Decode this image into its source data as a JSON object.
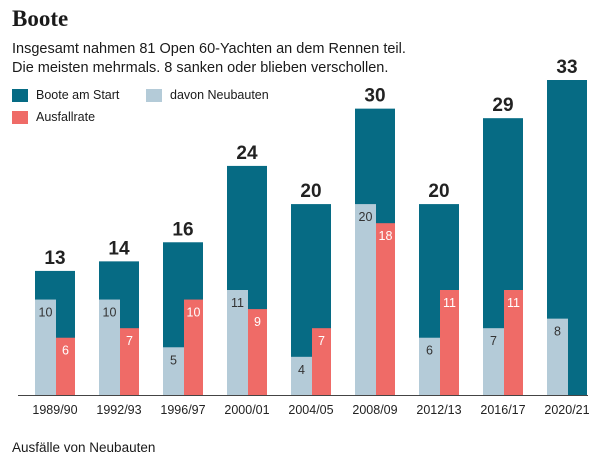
{
  "title": "Boote",
  "subtitle": {
    "line1": "Insgesamt nahmen 81 Open 60-Yachten an dem Rennen teil.",
    "line2": "Die meisten mehrmals. 8 sanken oder blieben verschollen."
  },
  "colors": {
    "start": "#066b84",
    "neubauten": "#b4cbd8",
    "ausfall": "#ef6b67"
  },
  "legend": {
    "start": "Boote am Start",
    "neubauten": "davon Neubauten",
    "ausfall": "Ausfallrate"
  },
  "footer": "Ausfälle von Neubauten",
  "chart_data": {
    "type": "bar",
    "categories": [
      "1989/90",
      "1992/93",
      "1996/97",
      "2000/01",
      "2004/05",
      "2008/09",
      "2012/13",
      "2016/17",
      "2020/21"
    ],
    "series": [
      {
        "name": "Boote am Start",
        "values": [
          13,
          14,
          16,
          24,
          20,
          30,
          20,
          29,
          33
        ]
      },
      {
        "name": "davon Neubauten",
        "values": [
          10,
          10,
          5,
          11,
          4,
          20,
          6,
          7,
          8
        ]
      },
      {
        "name": "Ausfallrate",
        "values": [
          6,
          7,
          10,
          9,
          7,
          18,
          11,
          11,
          null
        ]
      }
    ],
    "ylim": [
      0,
      33
    ],
    "grid": false,
    "legend_position": "top-left"
  }
}
